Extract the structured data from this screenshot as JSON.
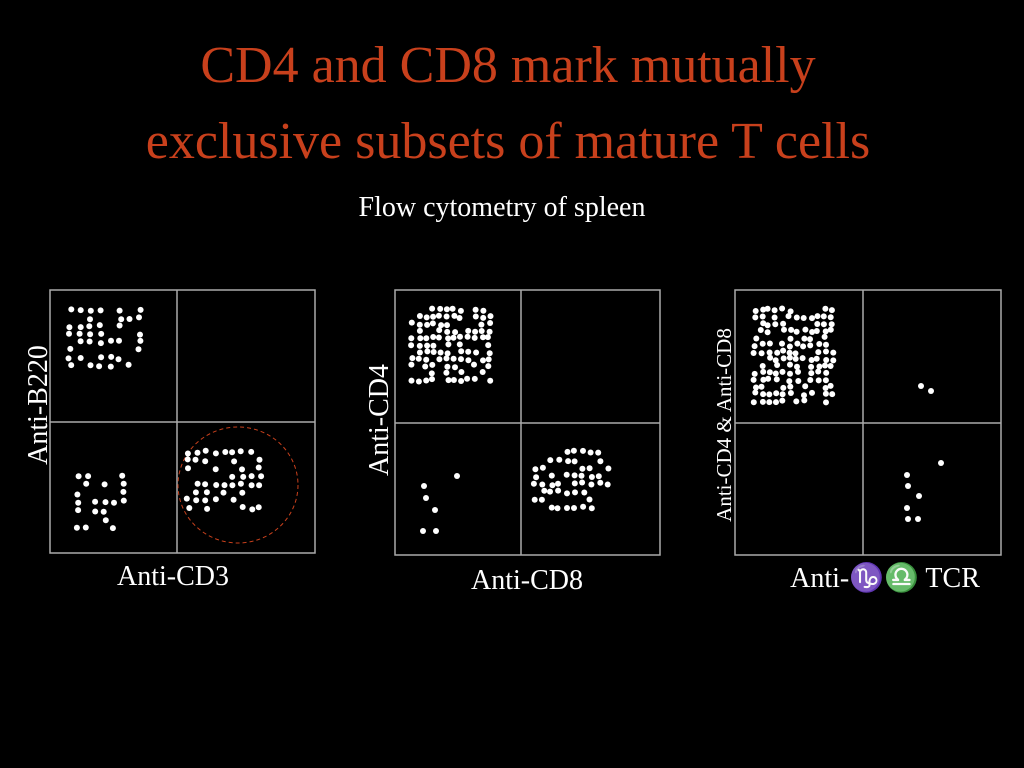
{
  "header": {
    "title_lines": [
      "CD4 and CD8 mark mutually",
      "exclusive subsets of mature T cells"
    ],
    "subtitle": "Flow cytometry of spleen"
  },
  "panels": [
    {
      "y_label": "Anti-B220",
      "x_label": "Anti-CD3"
    },
    {
      "y_label": "Anti-CD4",
      "x_label": "Anti-CD8"
    },
    {
      "y_label": "Anti-CD4 & Anti-CD8",
      "x_label": "Anti-♑♎ TCR"
    }
  ]
}
